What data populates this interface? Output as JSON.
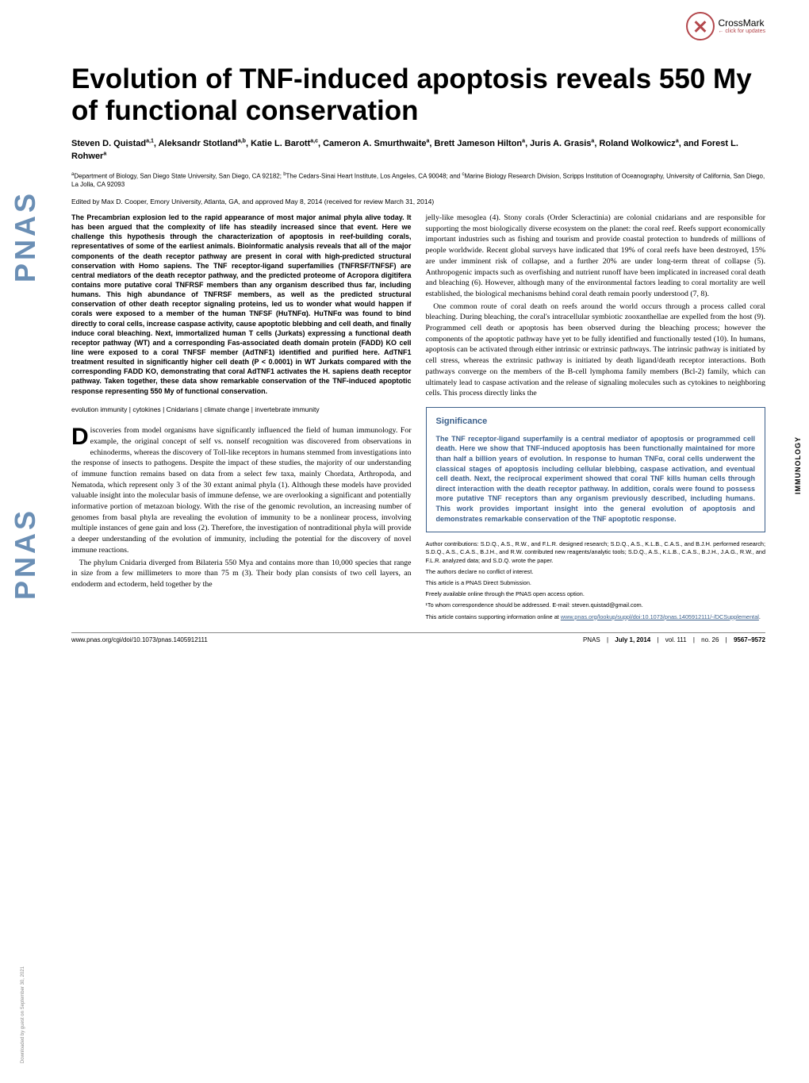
{
  "crossmark": {
    "label": "CrossMark",
    "sublabel": "← click for updates"
  },
  "side": {
    "pnas": "PNAS",
    "immunology": "IMMUNOLOGY",
    "download": "Downloaded by guest on September 30, 2021"
  },
  "title": "Evolution of TNF-induced apoptosis reveals 550 My of functional conservation",
  "authors_html": "Steven D. Quistad<sup>a,1</sup>, Aleksandr Stotland<sup>a,b</sup>, Katie L. Barott<sup>a,c</sup>, Cameron A. Smurthwaite<sup>a</sup>, Brett Jameson Hilton<sup>a</sup>, Juris A. Grasis<sup>a</sup>, Roland Wolkowicz<sup>a</sup>, and Forest L. Rohwer<sup>a</sup>",
  "affiliations_html": "<sup>a</sup>Department of Biology, San Diego State University, San Diego, CA 92182; <sup>b</sup>The Cedars-Sinai Heart Institute, Los Angeles, CA 90048; and <sup>c</sup>Marine Biology Research Division, Scripps Institution of Oceanography, University of California, San Diego, La Jolla, CA 92093",
  "editor_note": "Edited by Max D. Cooper, Emory University, Atlanta, GA, and approved May 8, 2014 (received for review March 31, 2014)",
  "abstract": "The Precambrian explosion led to the rapid appearance of most major animal phyla alive today. It has been argued that the complexity of life has steadily increased since that event. Here we challenge this hypothesis through the characterization of apoptosis in reef-building corals, representatives of some of the earliest animals. Bioinformatic analysis reveals that all of the major components of the death receptor pathway are present in coral with high-predicted structural conservation with Homo sapiens. The TNF receptor-ligand superfamilies (TNFRSF/TNFSF) are central mediators of the death receptor pathway, and the predicted proteome of Acropora digitifera contains more putative coral TNFRSF members than any organism described thus far, including humans. This high abundance of TNFRSF members, as well as the predicted structural conservation of other death receptor signaling proteins, led us to wonder what would happen if corals were exposed to a member of the human TNFSF (HuTNFα). HuTNFα was found to bind directly to coral cells, increase caspase activity, cause apoptotic blebbing and cell death, and finally induce coral bleaching. Next, immortalized human T cells (Jurkats) expressing a functional death receptor pathway (WT) and a corresponding Fas-associated death domain protein (FADD) KO cell line were exposed to a coral TNFSF member (AdTNF1) identified and purified here. AdTNF1 treatment resulted in significantly higher cell death (P < 0.0001) in WT Jurkats compared with the corresponding FADD KO, demonstrating that coral AdTNF1 activates the H. sapiens death receptor pathway. Taken together, these data show remarkable conservation of the TNF-induced apoptotic response representing 550 My of functional conservation.",
  "keywords": "evolution immunity | cytokines | Cnidarians | climate change | invertebrate immunity",
  "body_left": {
    "p1a": "iscoveries from model organisms have significantly influenced the field of human immunology. For example, the original concept of self vs. nonself recognition was discovered from observations in echinoderms, whereas the discovery of Toll-like receptors in humans stemmed from investigations into the response of insects to pathogens. Despite the impact of these studies, the majority of our understanding of immune function remains based on data from a select few taxa, mainly Chordata, Arthropoda, and Nematoda, which represent only 3 of the 30 extant animal phyla (1). Although these models have provided valuable insight into the molecular basis of immune defense, we are overlooking a significant and potentially informative portion of metazoan biology. With the rise of the genomic revolution, an increasing number of genomes from basal phyla are revealing the evolution of immunity to be a nonlinear process, involving multiple instances of gene gain and loss (2). Therefore, the investigation of nontraditional phyla will provide a deeper understanding of the evolution of immunity, including the potential for the discovery of novel immune reactions.",
    "p2": "The phylum Cnidaria diverged from Bilateria 550 Mya and contains more than 10,000 species that range in size from a few millimeters to more than 75 m (3). Their body plan consists of two cell layers, an endoderm and ectoderm, held together by the"
  },
  "body_right": {
    "p1": "jelly-like mesoglea (4). Stony corals (Order Scleractinia) are colonial cnidarians and are responsible for supporting the most biologically diverse ecosystem on the planet: the coral reef. Reefs support economically important industries such as fishing and tourism and provide coastal protection to hundreds of millions of people worldwide. Recent global surveys have indicated that 19% of coral reefs have been destroyed, 15% are under imminent risk of collapse, and a further 20% are under long-term threat of collapse (5). Anthropogenic impacts such as overfishing and nutrient runoff have been implicated in increased coral death and bleaching (6). However, although many of the environmental factors leading to coral mortality are well established, the biological mechanisms behind coral death remain poorly understood (7, 8).",
    "p2": "One common route of coral death on reefs around the world occurs through a process called coral bleaching. During bleaching, the coral's intracellular symbiotic zooxanthellae are expelled from the host (9). Programmed cell death or apoptosis has been observed during the bleaching process; however the components of the apoptotic pathway have yet to be fully identified and functionally tested (10). In humans, apoptosis can be activated through either intrinsic or extrinsic pathways. The intrinsic pathway is initiated by cell stress, whereas the extrinsic pathway is initiated by death ligand/death receptor interactions. Both pathways converge on the members of the B-cell lymphoma family members (Bcl-2) family, which can ultimately lead to caspase activation and the release of signaling molecules such as cytokines to neighboring cells. This process directly links the"
  },
  "significance": {
    "heading": "Significance",
    "content": "The TNF receptor-ligand superfamily is a central mediator of apoptosis or programmed cell death. Here we show that TNF-induced apoptosis has been functionally maintained for more than half a billion years of evolution. In response to human TNFα, coral cells underwent the classical stages of apoptosis including cellular blebbing, caspase activation, and eventual cell death. Next, the reciprocal experiment showed that coral TNF kills human cells through direct interaction with the death receptor pathway. In addition, corals were found to possess more putative TNF receptors than any organism previously described, including humans. This work provides important insight into the general evolution of apoptosis and demonstrates remarkable conservation of the TNF apoptotic response."
  },
  "footnotes": {
    "contributions": "Author contributions: S.D.Q., A.S., R.W., and F.L.R. designed research; S.D.Q., A.S., K.L.B., C.A.S., and B.J.H. performed research; S.D.Q., A.S., C.A.S., B.J.H., and R.W. contributed new reagents/analytic tools; S.D.Q., A.S., K.L.B., C.A.S., B.J.H., J.A.G., R.W., and F.L.R. analyzed data; and S.D.Q. wrote the paper.",
    "conflict": "The authors declare no conflict of interest.",
    "submission": "This article is a PNAS Direct Submission.",
    "openaccess": "Freely available online through the PNAS open access option.",
    "correspondence": "¹To whom correspondence should be addressed. E-mail: steven.quistad@gmail.com.",
    "supplement_pre": "This article contains supporting information online at ",
    "supplement_link": "www.pnas.org/lookup/suppl/doi:10.1073/pnas.1405912111/-/DCSupplemental",
    "supplement_post": "."
  },
  "footer": {
    "doi": "www.pnas.org/cgi/doi/10.1073/pnas.1405912111",
    "journal": "PNAS",
    "date": "July 1, 2014",
    "volume": "vol. 111",
    "issue": "no. 26",
    "pages": "9567–9572"
  },
  "colors": {
    "pnas_side": "#6b8fb5",
    "crossmark": "#b3474c",
    "significance": "#3b5f8a",
    "link": "#3b5f8a"
  }
}
